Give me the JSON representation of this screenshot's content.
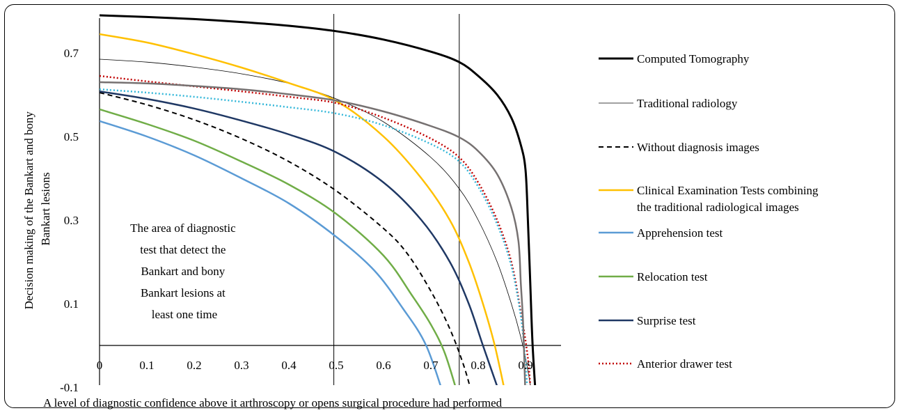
{
  "chart_data": {
    "type": "line",
    "ylabel_lines": [
      "Decision making  of the Bankart and bony",
      "Bankart lesions"
    ],
    "xlabel": "A level of diagnostic confidence above it arthroscopy or opens surgical procedure had performed",
    "xlim": [
      0,
      1
    ],
    "ylim": [
      -0.1,
      0.8
    ],
    "x_ticks": [
      "0",
      "0.1",
      "0.2",
      "0.3",
      "0.4",
      "0.5",
      "0.6",
      "0.7",
      "0.8",
      "0.9"
    ],
    "y_ticks": [
      "0.7",
      "0.5",
      "0.3",
      "0.1",
      "-0.1"
    ],
    "vertical_reference_lines": [
      0.495,
      0.76
    ],
    "annotation_lines": [
      "The area of diagnostic",
      "test that detect the",
      "Bankart and bony",
      "Bankart lesions at",
      "least one time"
    ],
    "series": [
      {
        "name": "Computed Tomography",
        "color": "#000000",
        "dash": "solid",
        "width": 3,
        "points": [
          [
            0,
            0.79
          ],
          [
            0.1,
            0.786
          ],
          [
            0.2,
            0.781
          ],
          [
            0.3,
            0.774
          ],
          [
            0.4,
            0.765
          ],
          [
            0.5,
            0.752
          ],
          [
            0.6,
            0.732
          ],
          [
            0.7,
            0.703
          ],
          [
            0.76,
            0.678
          ],
          [
            0.8,
            0.645
          ],
          [
            0.84,
            0.6
          ],
          [
            0.87,
            0.545
          ],
          [
            0.89,
            0.48
          ],
          [
            0.9,
            0.42
          ],
          [
            0.905,
            0.3
          ],
          [
            0.91,
            0.15
          ],
          [
            0.915,
            0.0
          ],
          [
            0.922,
            -0.13
          ]
        ]
      },
      {
        "name": "Traditional radiology",
        "color": "#000000",
        "dash": "solid",
        "width": 0.8,
        "points": [
          [
            0,
            0.685
          ],
          [
            0.1,
            0.678
          ],
          [
            0.2,
            0.666
          ],
          [
            0.3,
            0.65
          ],
          [
            0.4,
            0.627
          ],
          [
            0.5,
            0.59
          ],
          [
            0.6,
            0.535
          ],
          [
            0.7,
            0.45
          ],
          [
            0.76,
            0.375
          ],
          [
            0.8,
            0.3
          ],
          [
            0.84,
            0.2
          ],
          [
            0.87,
            0.1
          ],
          [
            0.89,
            0.02
          ],
          [
            0.905,
            -0.06
          ],
          [
            0.915,
            -0.13
          ]
        ]
      },
      {
        "name": "Without diagnosis images",
        "color": "#000000",
        "dash": "7,5",
        "width": 2,
        "points": [
          [
            0,
            0.605
          ],
          [
            0.1,
            0.576
          ],
          [
            0.2,
            0.54
          ],
          [
            0.3,
            0.495
          ],
          [
            0.4,
            0.44
          ],
          [
            0.5,
            0.37
          ],
          [
            0.6,
            0.28
          ],
          [
            0.65,
            0.22
          ],
          [
            0.7,
            0.13
          ],
          [
            0.74,
            0.04
          ],
          [
            0.77,
            -0.05
          ],
          [
            0.79,
            -0.13
          ]
        ]
      },
      {
        "name": "Clinical Examination Tests combining the traditional radiological images",
        "color": "#FFC000",
        "dash": "solid",
        "width": 2.5,
        "points": [
          [
            0,
            0.745
          ],
          [
            0.1,
            0.725
          ],
          [
            0.2,
            0.697
          ],
          [
            0.3,
            0.665
          ],
          [
            0.4,
            0.628
          ],
          [
            0.5,
            0.585
          ],
          [
            0.6,
            0.5
          ],
          [
            0.68,
            0.4
          ],
          [
            0.74,
            0.3
          ],
          [
            0.78,
            0.2
          ],
          [
            0.81,
            0.1
          ],
          [
            0.835,
            0.0
          ],
          [
            0.86,
            -0.13
          ]
        ]
      },
      {
        "name": "Apprehension test",
        "color": "#5B9BD5",
        "dash": "solid",
        "width": 2.5,
        "points": [
          [
            0,
            0.537
          ],
          [
            0.1,
            0.5
          ],
          [
            0.2,
            0.455
          ],
          [
            0.3,
            0.4
          ],
          [
            0.4,
            0.34
          ],
          [
            0.5,
            0.26
          ],
          [
            0.58,
            0.18
          ],
          [
            0.64,
            0.09
          ],
          [
            0.69,
            0.0
          ],
          [
            0.73,
            -0.13
          ]
        ]
      },
      {
        "name": "Relocation test",
        "color": "#70AD47",
        "dash": "solid",
        "width": 2.5,
        "points": [
          [
            0,
            0.565
          ],
          [
            0.1,
            0.53
          ],
          [
            0.2,
            0.49
          ],
          [
            0.3,
            0.44
          ],
          [
            0.4,
            0.385
          ],
          [
            0.5,
            0.315
          ],
          [
            0.6,
            0.215
          ],
          [
            0.66,
            0.12
          ],
          [
            0.7,
            0.05
          ],
          [
            0.73,
            -0.02
          ],
          [
            0.76,
            -0.13
          ]
        ]
      },
      {
        "name": "Surprise test",
        "color": "#1F3864",
        "dash": "solid",
        "width": 2.5,
        "points": [
          [
            0,
            0.608
          ],
          [
            0.1,
            0.59
          ],
          [
            0.2,
            0.567
          ],
          [
            0.3,
            0.538
          ],
          [
            0.4,
            0.505
          ],
          [
            0.5,
            0.462
          ],
          [
            0.6,
            0.39
          ],
          [
            0.68,
            0.3
          ],
          [
            0.74,
            0.2
          ],
          [
            0.78,
            0.1
          ],
          [
            0.81,
            0.0
          ],
          [
            0.85,
            -0.13
          ]
        ]
      },
      {
        "name": "Anterior drawer test",
        "color": "#C00000",
        "dash": "2,3",
        "width": 2.5,
        "points": [
          [
            0,
            0.645
          ],
          [
            0.1,
            0.632
          ],
          [
            0.2,
            0.62
          ],
          [
            0.3,
            0.608
          ],
          [
            0.4,
            0.595
          ],
          [
            0.5,
            0.58
          ],
          [
            0.6,
            0.545
          ],
          [
            0.7,
            0.495
          ],
          [
            0.76,
            0.45
          ],
          [
            0.8,
            0.39
          ],
          [
            0.84,
            0.3
          ],
          [
            0.87,
            0.2
          ],
          [
            0.89,
            0.08
          ],
          [
            0.905,
            -0.03
          ],
          [
            0.912,
            -0.13
          ]
        ]
      },
      {
        "name": "",
        "color": "#33B7D9",
        "dash": "2,3",
        "width": 2.5,
        "points": [
          [
            0,
            0.613
          ],
          [
            0.1,
            0.605
          ],
          [
            0.2,
            0.595
          ],
          [
            0.3,
            0.583
          ],
          [
            0.4,
            0.57
          ],
          [
            0.5,
            0.555
          ],
          [
            0.6,
            0.527
          ],
          [
            0.7,
            0.482
          ],
          [
            0.76,
            0.44
          ],
          [
            0.8,
            0.38
          ],
          [
            0.84,
            0.29
          ],
          [
            0.87,
            0.19
          ],
          [
            0.89,
            0.07
          ],
          [
            0.9,
            -0.04
          ],
          [
            0.905,
            -0.13
          ]
        ]
      },
      {
        "name": "",
        "color": "#767171",
        "dash": "solid",
        "width": 2.5,
        "points": [
          [
            0,
            0.63
          ],
          [
            0.1,
            0.627
          ],
          [
            0.2,
            0.621
          ],
          [
            0.3,
            0.613
          ],
          [
            0.4,
            0.601
          ],
          [
            0.5,
            0.586
          ],
          [
            0.6,
            0.56
          ],
          [
            0.7,
            0.525
          ],
          [
            0.76,
            0.498
          ],
          [
            0.8,
            0.465
          ],
          [
            0.84,
            0.41
          ],
          [
            0.87,
            0.33
          ],
          [
            0.885,
            0.25
          ],
          [
            0.89,
            0.15
          ],
          [
            0.895,
            0.05
          ],
          [
            0.9,
            -0.13
          ]
        ]
      }
    ]
  }
}
